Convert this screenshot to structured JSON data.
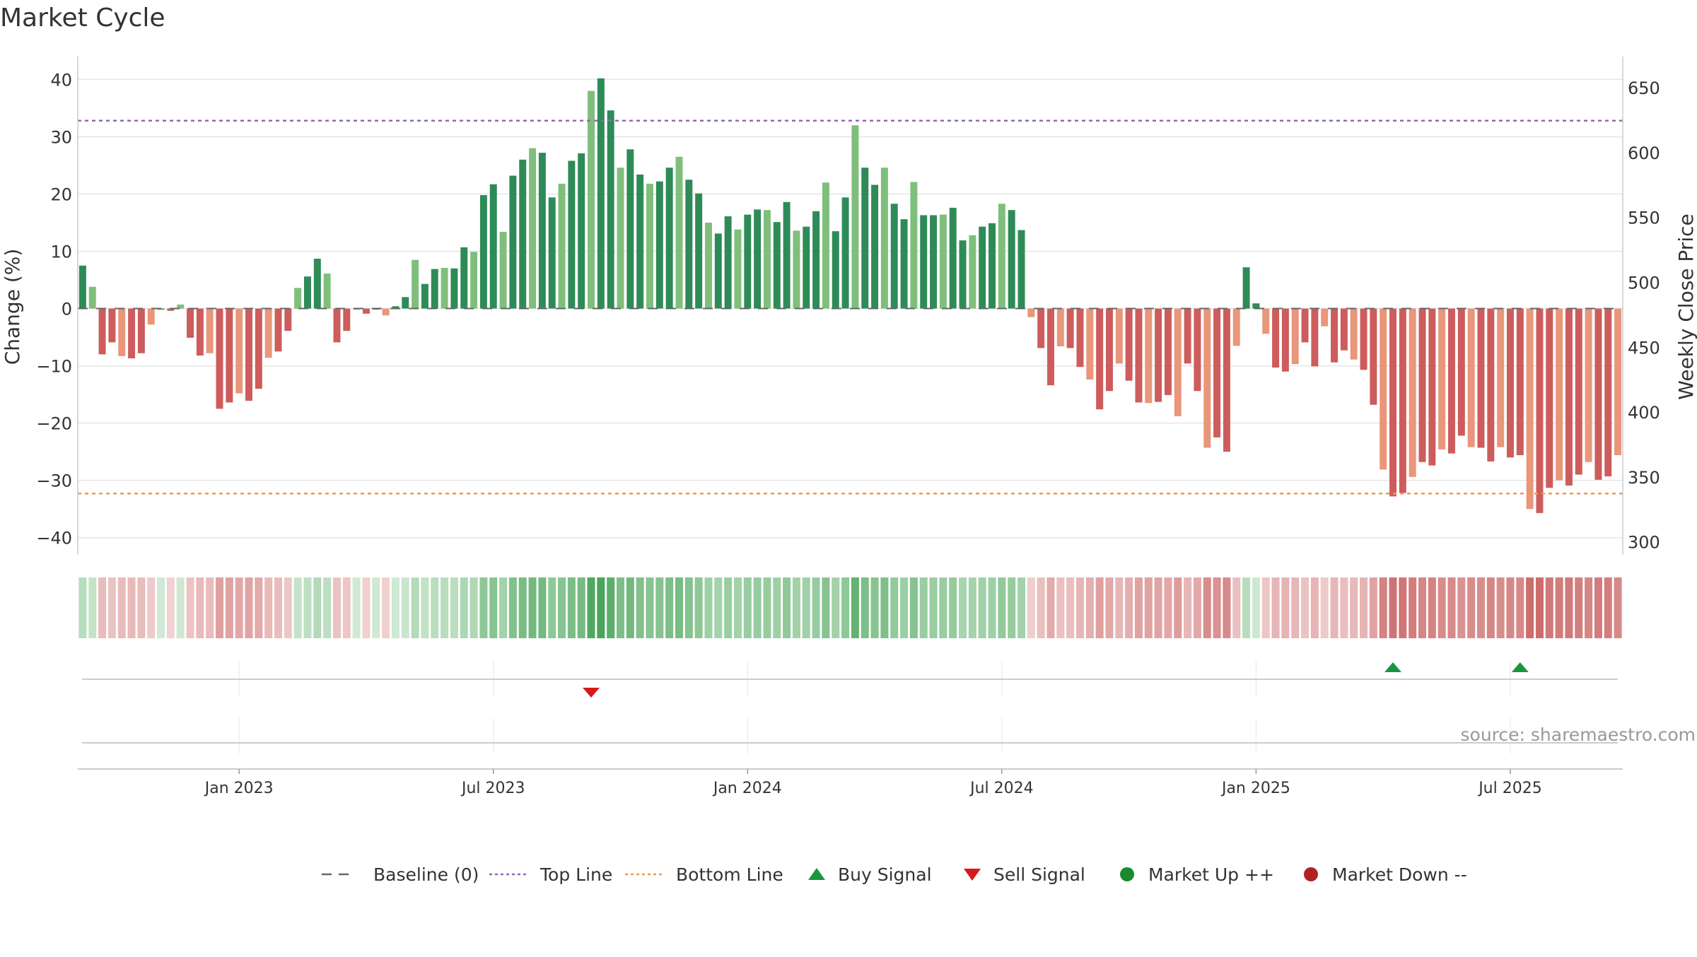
{
  "chart_data": {
    "type": "bar",
    "title": "Market Cycle",
    "ylabel": "Change (%)",
    "y2label": "Weekly Close Price",
    "ylim": [
      -43,
      44
    ],
    "y2lim": [
      290,
      674
    ],
    "yticks": [
      40,
      30,
      20,
      10,
      0,
      -10,
      -20,
      -30,
      -40
    ],
    "y2ticks": [
      650,
      600,
      550,
      500,
      450,
      400,
      350,
      300
    ],
    "x_ticks": [
      "Jan 2023",
      "Jul 2023",
      "Jan 2024",
      "Jul 2024",
      "Jan 2025",
      "Jul 2025"
    ],
    "x_tick_indices": [
      16,
      42,
      68,
      94,
      120,
      146
    ],
    "top_line": 32.8,
    "bottom_line": -32.3,
    "grid": true,
    "legend_position": "bottom-center",
    "values": [
      7.5,
      3.8,
      -8,
      -5.9,
      -8.3,
      -8.7,
      -7.8,
      -2.8,
      0,
      -0.4,
      0.7,
      -5.1,
      -8.2,
      -7.8,
      -17.5,
      -16.4,
      -14.8,
      -16.1,
      -14,
      -8.6,
      -7.5,
      -3.9,
      3.6,
      5.6,
      8.7,
      6.1,
      -5.9,
      -3.9,
      0,
      -0.9,
      0,
      -1.2,
      0.4,
      2,
      8.5,
      4.3,
      6.9,
      7.1,
      7,
      10.7,
      9.9,
      19.8,
      21.7,
      13.4,
      23.2,
      26,
      28,
      27.2,
      19.4,
      21.8,
      25.8,
      27.1,
      38,
      40.2,
      34.6,
      24.6,
      27.8,
      23.4,
      21.8,
      22.2,
      24.6,
      26.5,
      22.5,
      20.1,
      15,
      13.1,
      16.1,
      13.8,
      16.4,
      17.3,
      17.2,
      15.1,
      18.6,
      13.6,
      14.3,
      17,
      22,
      13.5,
      19.4,
      32,
      24.6,
      21.6,
      24.6,
      18.3,
      15.6,
      22.1,
      16.3,
      16.3,
      16.4,
      17.6,
      11.9,
      12.8,
      14.3,
      14.9,
      18.3,
      17.2,
      13.7,
      -1.5,
      -6.9,
      -13.4,
      -6.6,
      -6.9,
      -10.2,
      -12.4,
      -17.6,
      -14.4,
      -9.6,
      -12.6,
      -16.4,
      -16.5,
      -16.3,
      -15.1,
      -18.8,
      -9.6,
      -14.4,
      -24.3,
      -22.5,
      -25,
      -6.5,
      7.2,
      0.9,
      -4.4,
      -10.3,
      -11,
      -9.7,
      -5.9,
      -10.1,
      -3.1,
      -9.4,
      -7.3,
      -8.9,
      -10.7,
      -16.8,
      -28.1,
      -32.8,
      -32.2,
      -29.4,
      -26.8,
      -27.4,
      -24.6,
      -25.3,
      -22.2,
      -24.2,
      -24.3,
      -26.7,
      -24.2,
      -26,
      -25.6,
      -35,
      -35.7,
      -31.3,
      -30,
      -30.9,
      -29,
      -26.8,
      -29.9,
      -29.3,
      -25.6
    ],
    "buy_signals": [
      134,
      147
    ],
    "sell_signals": [
      52
    ],
    "source_text": "source: sharemaestro.com"
  },
  "legend": {
    "items": [
      {
        "label": "Baseline (0)",
        "kind": "dash",
        "color": "#666666"
      },
      {
        "label": "Top Line",
        "kind": "dot",
        "color": "#9467bd"
      },
      {
        "label": "Bottom Line",
        "kind": "dot",
        "color": "#ee9a4d"
      },
      {
        "label": "Buy Signal",
        "kind": "tri-up",
        "color": "#1a9641"
      },
      {
        "label": "Sell Signal",
        "kind": "tri-down",
        "color": "#d7191c"
      },
      {
        "label": "Market Up ++",
        "kind": "circle",
        "color": "#1a8a2a"
      },
      {
        "label": "Market Down --",
        "kind": "circle",
        "color": "#b22222"
      }
    ]
  },
  "colors": {
    "up_dark": "#2e8b57",
    "up_light": "#7fbf7b",
    "down_dark": "#cd5c5c",
    "down_light": "#e9967a",
    "top_line": "#9467bd",
    "bottom_line": "#ee9a4d",
    "grid": "#e6e6e6",
    "axis": "#cccccc",
    "text": "#333333",
    "source": "#999999"
  }
}
